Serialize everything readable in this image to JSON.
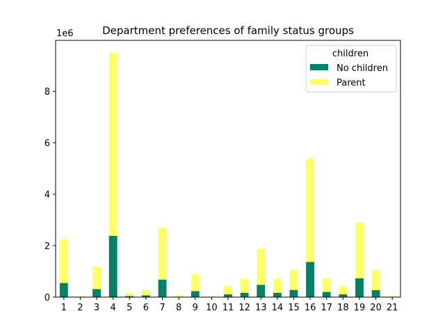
{
  "chart_data": {
    "type": "bar",
    "stacked": true,
    "title": "Department preferences of family status groups",
    "xlabel": "",
    "ylabel": "",
    "y_offset_label": "1e6",
    "ylim": [
      0,
      9.98
    ],
    "yticks": [
      0,
      2,
      4,
      6,
      8
    ],
    "ytick_labels": [
      "0",
      "2",
      "4",
      "6",
      "8"
    ],
    "categories": [
      "1",
      "2",
      "3",
      "4",
      "5",
      "6",
      "7",
      "8",
      "9",
      "10",
      "11",
      "12",
      "13",
      "14",
      "15",
      "16",
      "17",
      "18",
      "19",
      "20",
      "21"
    ],
    "series": [
      {
        "name": "No children",
        "color": "#008066",
        "values": [
          0.55,
          0.01,
          0.31,
          2.38,
          0.04,
          0.07,
          0.68,
          0.02,
          0.23,
          0.01,
          0.11,
          0.17,
          0.48,
          0.17,
          0.28,
          1.37,
          0.2,
          0.11,
          0.73,
          0.27,
          0.01
        ]
      },
      {
        "name": "Parent",
        "color": "#ffff66",
        "values": [
          1.7,
          0.03,
          0.87,
          7.12,
          0.13,
          0.21,
          2.03,
          0.07,
          0.66,
          0.03,
          0.33,
          0.55,
          1.4,
          0.55,
          0.78,
          4.03,
          0.54,
          0.33,
          2.17,
          0.78,
          0.05
        ]
      }
    ],
    "legend": {
      "title": "children",
      "position": "top-right"
    },
    "grid": false
  }
}
